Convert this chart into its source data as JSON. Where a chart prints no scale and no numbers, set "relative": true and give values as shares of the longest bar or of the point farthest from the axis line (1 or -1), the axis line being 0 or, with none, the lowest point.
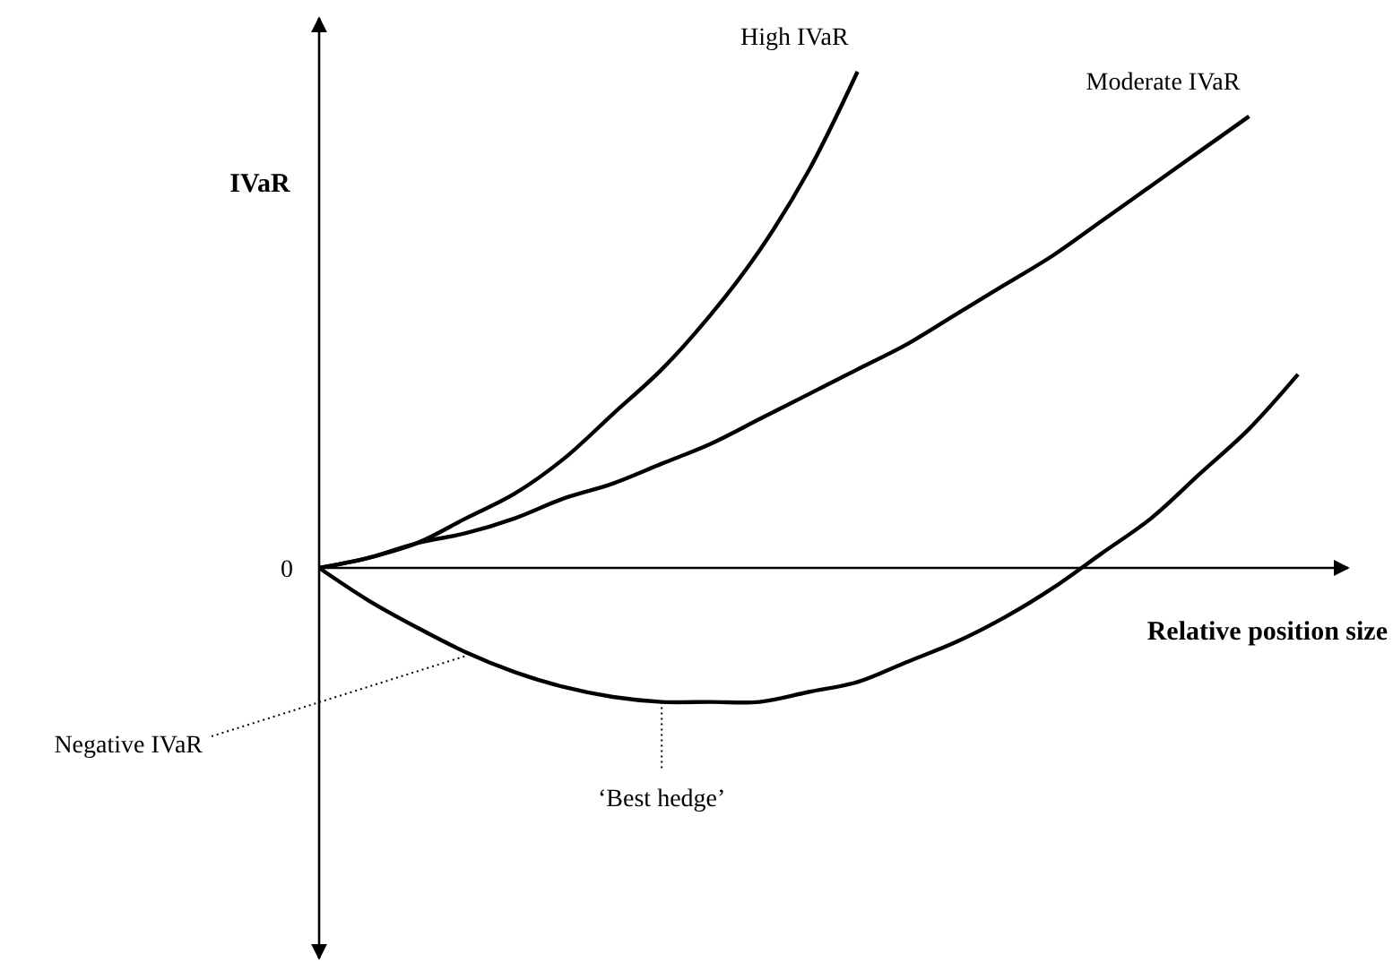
{
  "chart_data": {
    "type": "line",
    "relative": true,
    "xlabel": "Relative position size",
    "ylabel": "IVaR",
    "marker": "none",
    "line_style": "solid",
    "categories": [
      null,
      null,
      null,
      null,
      null,
      null,
      null,
      null,
      null,
      null,
      null,
      null,
      null,
      null,
      null,
      null,
      null,
      null,
      null,
      null,
      null
    ],
    "series": [
      {
        "name": "High IVaR",
        "color": "#000000",
        "values": [
          0,
          0.02,
          0.05,
          0.1,
          0.15,
          0.22,
          0.31,
          0.4,
          0.51,
          0.64,
          0.8,
          1,
          null,
          null,
          null,
          null,
          null,
          null,
          null,
          null,
          null
        ]
      },
      {
        "name": "Moderate IVaR",
        "color": "#000000",
        "values": [
          0,
          0.02,
          0.05,
          0.07,
          0.1,
          0.14,
          0.17,
          0.21,
          0.25,
          0.3,
          0.35,
          0.4,
          0.45,
          0.51,
          0.57,
          0.63,
          0.7,
          0.77,
          0.84,
          0.91,
          null
        ]
      },
      {
        "color": "#000000",
        "values": [
          0,
          -0.065,
          -0.12,
          -0.17,
          -0.21,
          -0.24,
          -0.26,
          -0.27,
          -0.27,
          -0.27,
          -0.25,
          -0.23,
          -0.19,
          -0.15,
          -0.1,
          -0.04,
          0.03,
          0.1,
          0.19,
          0.28,
          0.39
        ]
      }
    ],
    "annotations": [
      "0",
      "Negative IVaR",
      "‘Best hedge’"
    ]
  }
}
